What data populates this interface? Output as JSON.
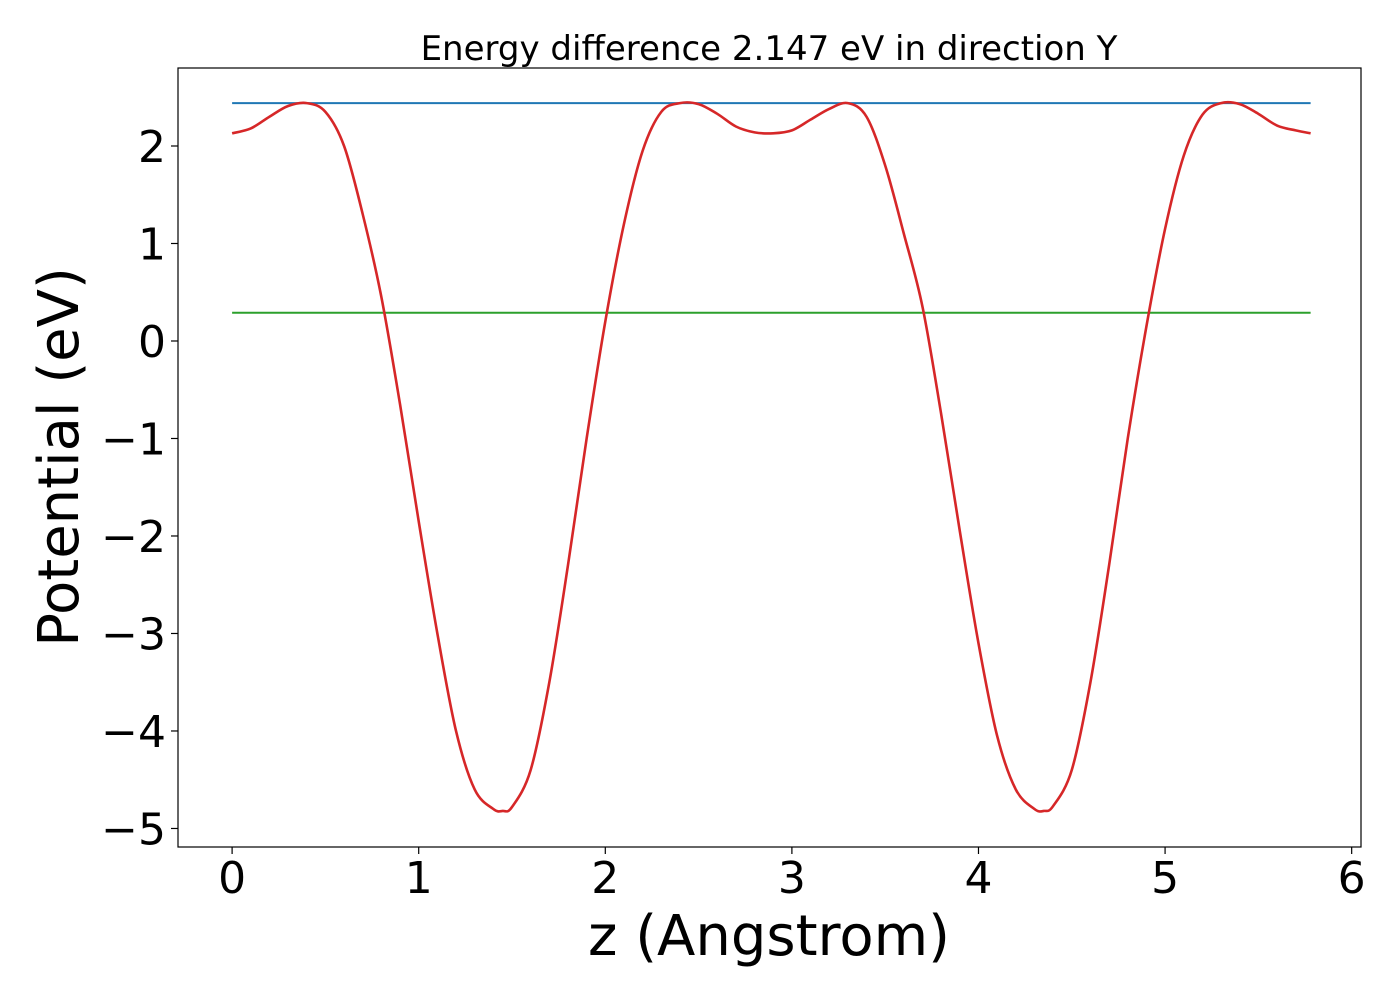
{
  "chart_data": {
    "type": "line",
    "title": "Energy difference 2.147 eV in direction Y",
    "xlabel": "z (Angstrom)",
    "ylabel": "Potential (eV)",
    "xlim": [
      -0.29,
      6.05
    ],
    "ylim": [
      -5.19,
      2.8
    ],
    "grid": false,
    "x_ticks": [
      0,
      1,
      2,
      3,
      4,
      5,
      6
    ],
    "x_tick_labels": [
      "0",
      "1",
      "2",
      "3",
      "4",
      "5",
      "6"
    ],
    "y_ticks": [
      2,
      1,
      0,
      -1,
      -2,
      -3,
      -4,
      -5
    ],
    "y_tick_labels": [
      "2",
      "1",
      "0",
      "−1",
      "−2",
      "−3",
      "−4",
      "−5"
    ],
    "series": [
      {
        "color": "#d62728",
        "style": "curve",
        "x": [
          0,
          0.1,
          0.2,
          0.3,
          0.4,
          0.5,
          0.6,
          0.7,
          0.8,
          0.9,
          1.0,
          1.1,
          1.2,
          1.3,
          1.4,
          1.45,
          1.5,
          1.6,
          1.7,
          1.8,
          1.9,
          2.0,
          2.1,
          2.2,
          2.3,
          2.4,
          2.5,
          2.6,
          2.7,
          2.8,
          2.9,
          3.0,
          3.1,
          3.2,
          3.3,
          3.4,
          3.5,
          3.6,
          3.7,
          3.8,
          3.9,
          4.0,
          4.1,
          4.2,
          4.3,
          4.35,
          4.4,
          4.5,
          4.6,
          4.7,
          4.8,
          4.9,
          5.0,
          5.1,
          5.2,
          5.3,
          5.4,
          5.5,
          5.6,
          5.7,
          5.78
        ],
        "y": [
          2.13,
          2.18,
          2.3,
          2.41,
          2.44,
          2.35,
          2.0,
          1.3,
          0.45,
          -0.65,
          -1.85,
          -3.0,
          -4.0,
          -4.6,
          -4.8,
          -4.82,
          -4.78,
          -4.4,
          -3.5,
          -2.3,
          -1.0,
          0.2,
          1.2,
          1.95,
          2.35,
          2.44,
          2.43,
          2.33,
          2.2,
          2.14,
          2.13,
          2.16,
          2.27,
          2.38,
          2.44,
          2.3,
          1.8,
          1.1,
          0.35,
          -0.75,
          -1.95,
          -3.1,
          -4.05,
          -4.6,
          -4.8,
          -4.82,
          -4.77,
          -4.4,
          -3.5,
          -2.3,
          -1.0,
          0.15,
          1.15,
          1.9,
          2.32,
          2.44,
          2.43,
          2.33,
          2.21,
          2.16,
          2.13
        ]
      },
      {
        "color": "#1f77b4",
        "style": "hline",
        "x": [
          0,
          5.78
        ],
        "y": [
          2.44,
          2.44
        ]
      },
      {
        "color": "#2ca02c",
        "style": "hline",
        "x": [
          0,
          5.78
        ],
        "y": [
          0.29,
          0.29
        ]
      }
    ]
  }
}
